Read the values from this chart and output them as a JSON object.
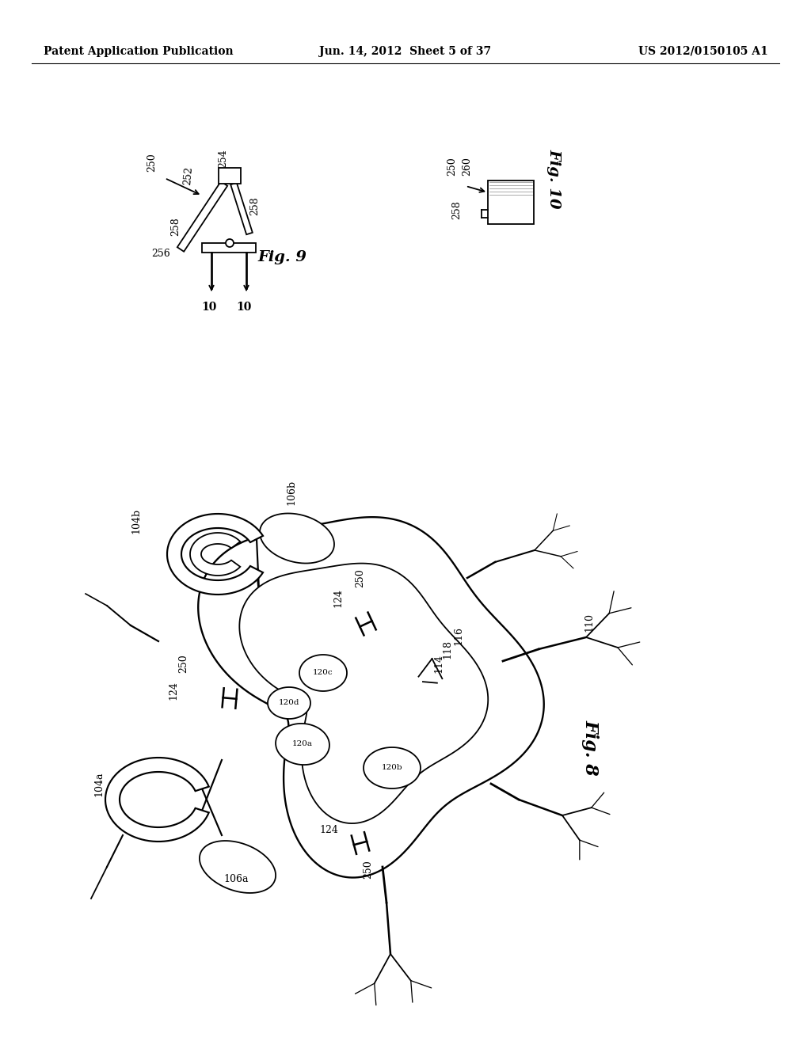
{
  "bg_color": "#ffffff",
  "line_color": "#000000",
  "header_left": "Patent Application Publication",
  "header_mid": "Jun. 14, 2012  Sheet 5 of 37",
  "header_right": "US 2012/0150105 A1",
  "fig9_label": "Fig. 9",
  "fig10_label": "Fig. 10",
  "fig8_label": "Fig. 8",
  "header_fontsize": 10,
  "label_fontsize": 9,
  "figlabel_fontsize": 14
}
